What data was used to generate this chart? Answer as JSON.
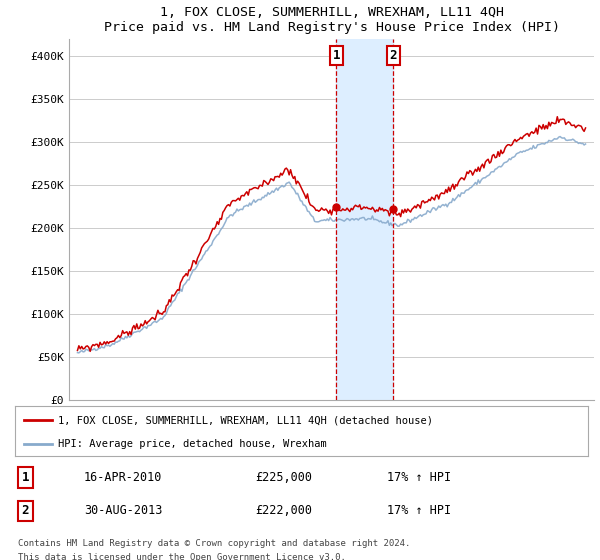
{
  "title": "1, FOX CLOSE, SUMMERHILL, WREXHAM, LL11 4QH",
  "subtitle": "Price paid vs. HM Land Registry's House Price Index (HPI)",
  "legend_line1": "1, FOX CLOSE, SUMMERHILL, WREXHAM, LL11 4QH (detached house)",
  "legend_line2": "HPI: Average price, detached house, Wrexham",
  "footnote1": "Contains HM Land Registry data © Crown copyright and database right 2024.",
  "footnote2": "This data is licensed under the Open Government Licence v3.0.",
  "annotation1_label": "1",
  "annotation1_date": "16-APR-2010",
  "annotation1_price": "£225,000",
  "annotation1_hpi": "17% ↑ HPI",
  "annotation2_label": "2",
  "annotation2_date": "30-AUG-2013",
  "annotation2_price": "£222,000",
  "annotation2_hpi": "17% ↑ HPI",
  "sale1_x": 2010.29,
  "sale1_y": 225000,
  "sale2_x": 2013.66,
  "sale2_y": 222000,
  "vline1_x": 2010.29,
  "vline2_x": 2013.66,
  "shade_xmin": 2010.29,
  "shade_xmax": 2013.66,
  "ylim_min": 0,
  "ylim_max": 420000,
  "xlim_min": 1994.5,
  "xlim_max": 2025.5,
  "red_color": "#cc0000",
  "blue_color": "#88aacc",
  "shade_color": "#ddeeff",
  "vline_color": "#cc0000",
  "background_color": "#ffffff",
  "grid_color": "#cccccc",
  "yticks": [
    0,
    50000,
    100000,
    150000,
    200000,
    250000,
    300000,
    350000,
    400000
  ],
  "ytick_labels": [
    "£0",
    "£50K",
    "£100K",
    "£150K",
    "£200K",
    "£250K",
    "£300K",
    "£350K",
    "£400K"
  ],
  "hpi_seed": 42,
  "red_seed": 99
}
